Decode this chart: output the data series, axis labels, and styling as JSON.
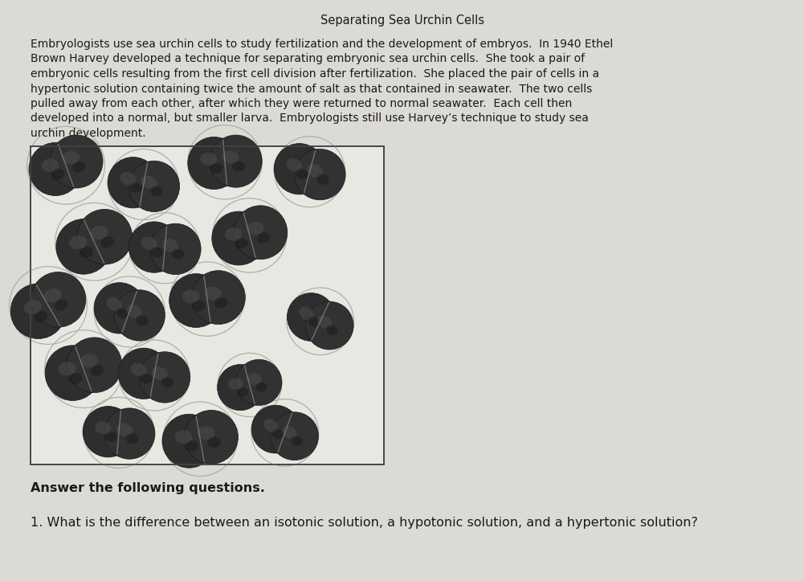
{
  "title": "Separating Sea Urchin Cells",
  "bg_color": "#dcdad4",
  "img_bg_color": "#e0ddd6",
  "paragraph_lines": [
    "Embryologists use sea urchin cells to study fertilization and the development of embryos.  In 1940 Ethel",
    "Brown Harvey developed a technique for separating embryonic sea urchin cells.  She took a pair of",
    "embryonic cells resulting from the first cell division after fertilization.  She placed the pair of cells in a",
    "hypertonic solution containing twice the amount of salt as that contained in seawater.  The two cells",
    "pulled away from each other, after which they were returned to normal seawater.  Each cell then",
    "developed into a normal, but smaller larva.  Embryologists still use Harvey’s technique to study sea",
    "urchin development."
  ],
  "answer_header": "Answer the following questions.",
  "question1": "1. What is the difference between an isotonic solution, a hypotonic solution, and a hypertonic solution?",
  "title_fontsize": 10.5,
  "body_fontsize": 10.0,
  "bold_fontsize": 11.5,
  "question_fontsize": 11.5,
  "figsize": [
    10.01,
    7.23
  ],
  "dpi": 100
}
